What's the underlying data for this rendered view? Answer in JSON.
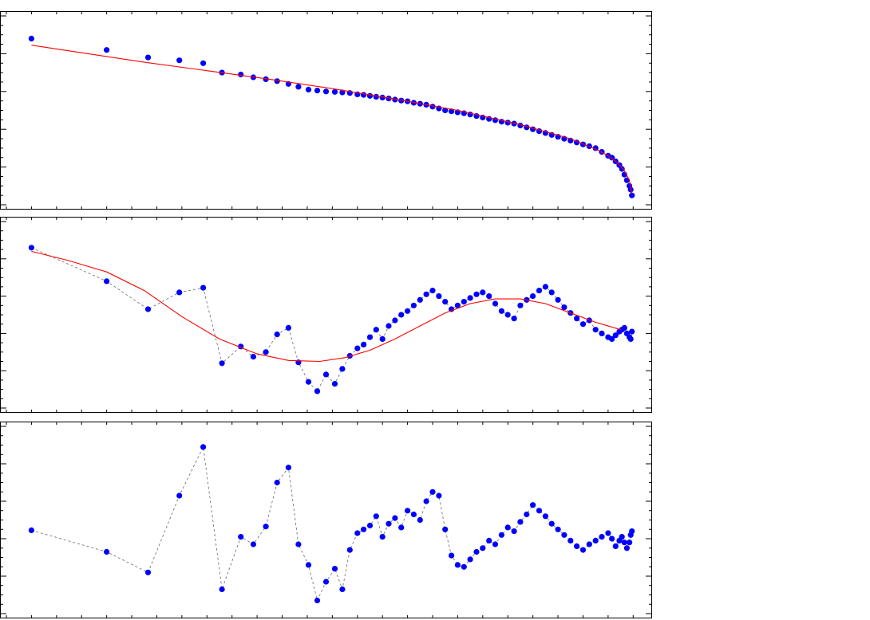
{
  "chart_data": [
    {
      "type": "scatter",
      "grid": false,
      "title": "",
      "xlim": [
        -10,
        500
      ],
      "ylim": [
        0,
        1
      ],
      "series": [
        {
          "kind": "points",
          "color": "#0000ff",
          "x": [
            10,
            70,
            103,
            128,
            147,
            162,
            177,
            187,
            197,
            206,
            215,
            223,
            231,
            238,
            245,
            252,
            258,
            264,
            270,
            275,
            280,
            285,
            290,
            295,
            300,
            305,
            310,
            315,
            320,
            325,
            330,
            335,
            340,
            345,
            350,
            355,
            360,
            365,
            370,
            375,
            380,
            385,
            390,
            395,
            400,
            405,
            410,
            415,
            420,
            425,
            430,
            435,
            440,
            445,
            450,
            455,
            460,
            465,
            470,
            473,
            476,
            479,
            481,
            483,
            485,
            487,
            488,
            489
          ],
          "y": [
            0.88,
            0.82,
            0.78,
            0.765,
            0.75,
            0.7,
            0.69,
            0.675,
            0.665,
            0.655,
            0.64,
            0.625,
            0.61,
            0.605,
            0.6,
            0.598,
            0.595,
            0.592,
            0.585,
            0.582,
            0.577,
            0.572,
            0.568,
            0.563,
            0.557,
            0.552,
            0.548,
            0.54,
            0.535,
            0.53,
            0.52,
            0.51,
            0.5,
            0.495,
            0.49,
            0.485,
            0.478,
            0.47,
            0.462,
            0.455,
            0.448,
            0.44,
            0.435,
            0.43,
            0.42,
            0.41,
            0.4,
            0.39,
            0.38,
            0.37,
            0.36,
            0.35,
            0.34,
            0.33,
            0.32,
            0.31,
            0.3,
            0.28,
            0.26,
            0.25,
            0.23,
            0.21,
            0.19,
            0.16,
            0.13,
            0.1,
            0.08,
            0.05
          ]
        },
        {
          "kind": "fit-line",
          "color": "#ff0000",
          "x": [
            10,
            50,
            100,
            150,
            200,
            250,
            300,
            350,
            400,
            440,
            460,
            470,
            478,
            483,
            487,
            489
          ],
          "y": [
            0.845,
            0.805,
            0.755,
            0.71,
            0.665,
            0.615,
            0.56,
            0.5,
            0.425,
            0.35,
            0.295,
            0.26,
            0.22,
            0.18,
            0.13,
            0.06
          ]
        }
      ]
    },
    {
      "type": "scatter",
      "grid": false,
      "title": "",
      "xlim": [
        -10,
        500
      ],
      "ylim": [
        0,
        1
      ],
      "series": [
        {
          "kind": "points",
          "connector": "dashed",
          "color": "#0000ff",
          "x": [
            10,
            70,
            103,
            128,
            147,
            162,
            177,
            187,
            197,
            206,
            215,
            223,
            231,
            238,
            245,
            252,
            258,
            264,
            270,
            275,
            280,
            285,
            290,
            295,
            300,
            305,
            310,
            315,
            320,
            325,
            330,
            335,
            340,
            345,
            350,
            355,
            360,
            365,
            370,
            375,
            380,
            385,
            390,
            395,
            400,
            405,
            410,
            415,
            420,
            425,
            430,
            435,
            440,
            445,
            450,
            455,
            460,
            465,
            470,
            473,
            476,
            479,
            481,
            483,
            485,
            487,
            488,
            489
          ],
          "y": [
            0.86,
            0.68,
            0.53,
            0.62,
            0.645,
            0.24,
            0.33,
            0.275,
            0.3,
            0.395,
            0.43,
            0.245,
            0.14,
            0.09,
            0.18,
            0.13,
            0.21,
            0.28,
            0.32,
            0.34,
            0.38,
            0.42,
            0.37,
            0.44,
            0.47,
            0.5,
            0.52,
            0.55,
            0.58,
            0.61,
            0.63,
            0.6,
            0.57,
            0.53,
            0.55,
            0.57,
            0.59,
            0.61,
            0.62,
            0.6,
            0.56,
            0.52,
            0.5,
            0.48,
            0.55,
            0.58,
            0.6,
            0.63,
            0.65,
            0.62,
            0.58,
            0.54,
            0.51,
            0.48,
            0.45,
            0.47,
            0.42,
            0.4,
            0.38,
            0.37,
            0.39,
            0.41,
            0.42,
            0.43,
            0.4,
            0.38,
            0.37,
            0.41
          ]
        },
        {
          "kind": "fit-line",
          "color": "#ff0000",
          "x": [
            10,
            40,
            70,
            100,
            130,
            160,
            190,
            215,
            240,
            260,
            280,
            300,
            320,
            340,
            360,
            380,
            400,
            420,
            440,
            460,
            480
          ],
          "y": [
            0.84,
            0.79,
            0.73,
            0.63,
            0.49,
            0.37,
            0.29,
            0.255,
            0.25,
            0.27,
            0.31,
            0.37,
            0.44,
            0.51,
            0.56,
            0.585,
            0.585,
            0.56,
            0.51,
            0.46,
            0.42
          ]
        }
      ]
    },
    {
      "type": "scatter",
      "grid": false,
      "title": "",
      "xlim": [
        -10,
        500
      ],
      "ylim": [
        0,
        1
      ],
      "series": [
        {
          "kind": "points",
          "connector": "dashed",
          "color": "#0000ff",
          "x": [
            10,
            70,
            103,
            128,
            147,
            162,
            177,
            187,
            197,
            206,
            215,
            223,
            231,
            238,
            245,
            252,
            258,
            264,
            270,
            275,
            280,
            285,
            290,
            295,
            300,
            305,
            310,
            315,
            320,
            325,
            330,
            335,
            340,
            345,
            350,
            355,
            360,
            365,
            370,
            375,
            380,
            385,
            390,
            395,
            400,
            405,
            410,
            415,
            420,
            425,
            430,
            435,
            440,
            445,
            450,
            455,
            460,
            465,
            470,
            473,
            476,
            479,
            481,
            483,
            485,
            487,
            488,
            489
          ],
          "y": [
            0.445,
            0.33,
            0.22,
            0.63,
            0.89,
            0.13,
            0.41,
            0.37,
            0.465,
            0.7,
            0.78,
            0.37,
            0.26,
            0.07,
            0.17,
            0.24,
            0.13,
            0.34,
            0.43,
            0.45,
            0.47,
            0.52,
            0.41,
            0.48,
            0.51,
            0.46,
            0.55,
            0.53,
            0.5,
            0.6,
            0.65,
            0.63,
            0.45,
            0.31,
            0.26,
            0.25,
            0.29,
            0.33,
            0.35,
            0.39,
            0.37,
            0.42,
            0.46,
            0.44,
            0.49,
            0.53,
            0.58,
            0.55,
            0.52,
            0.48,
            0.45,
            0.42,
            0.39,
            0.36,
            0.34,
            0.37,
            0.39,
            0.41,
            0.43,
            0.4,
            0.36,
            0.39,
            0.41,
            0.38,
            0.35,
            0.38,
            0.42,
            0.44
          ]
        }
      ]
    }
  ]
}
